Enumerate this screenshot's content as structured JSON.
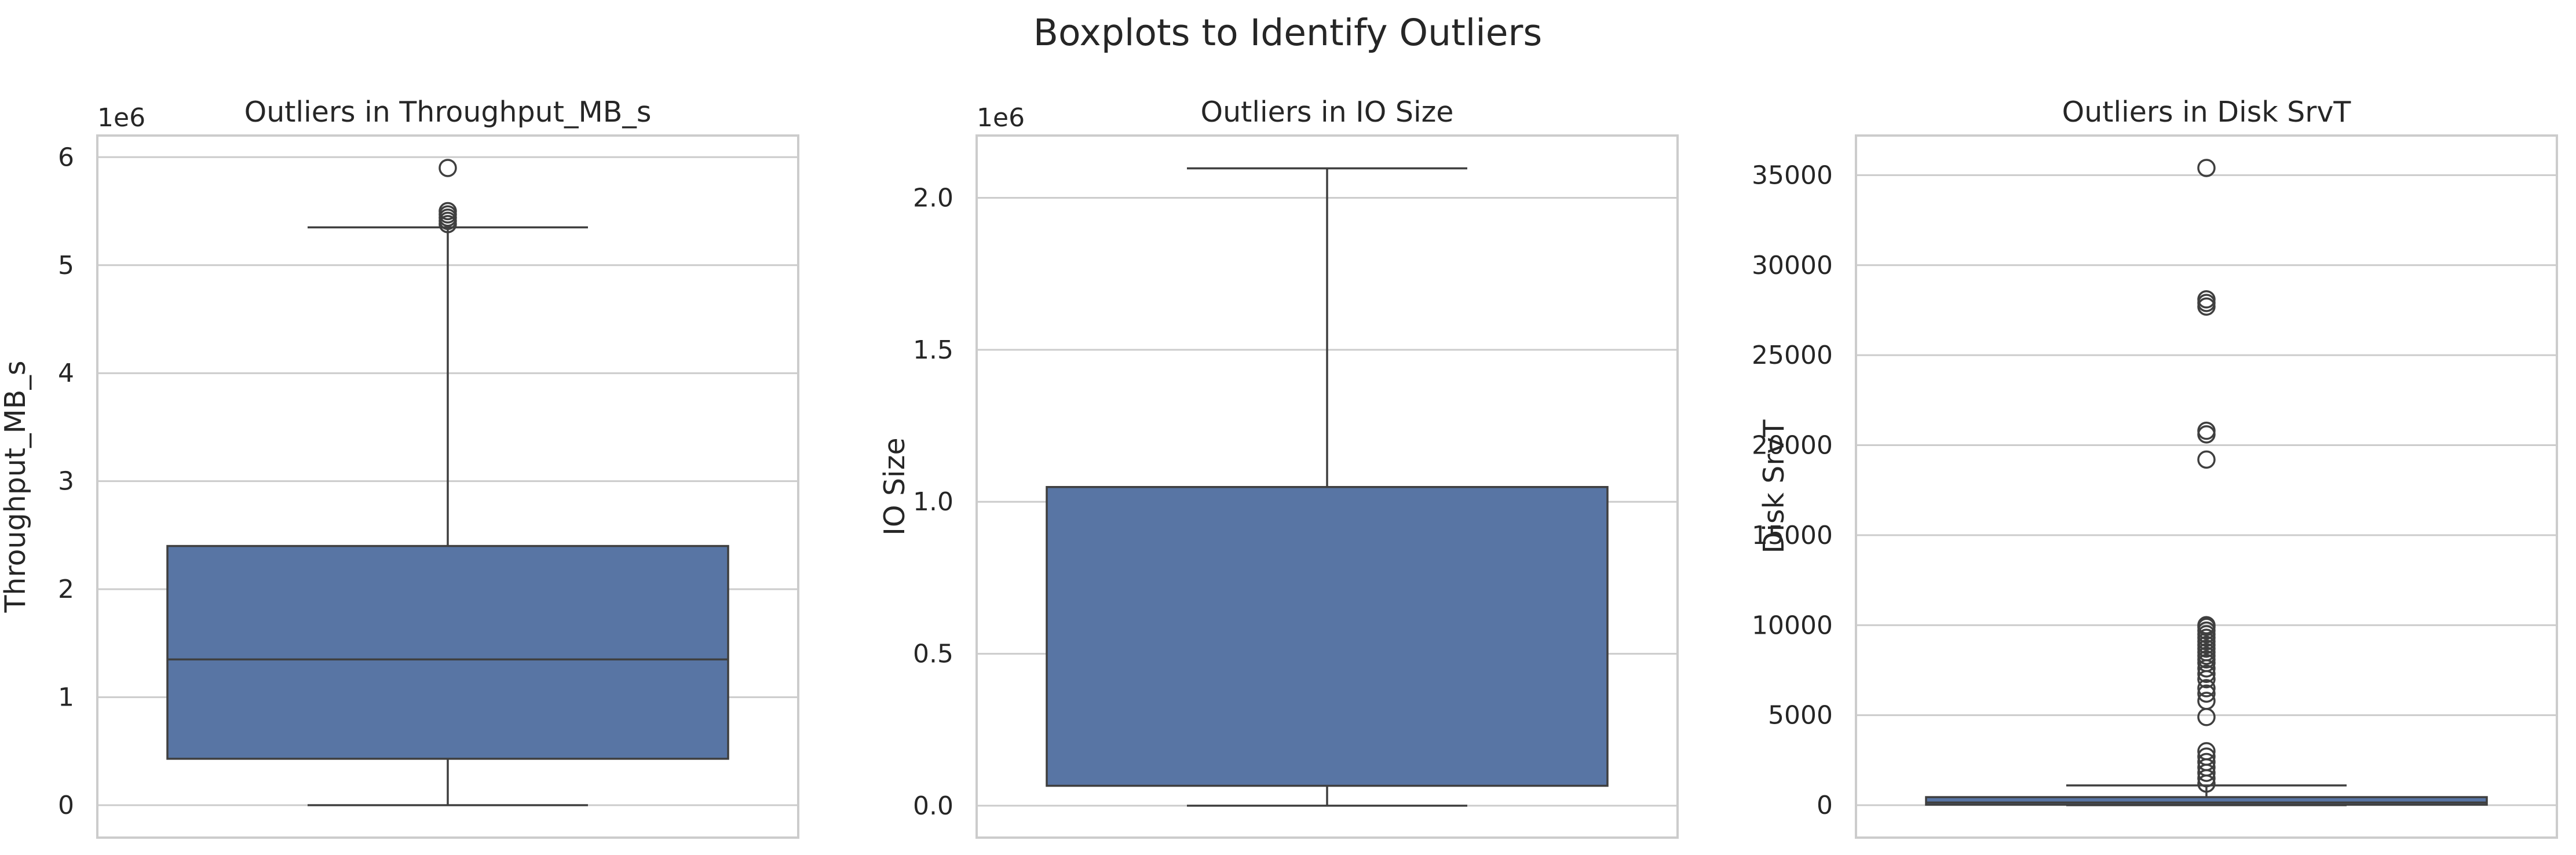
{
  "figure_title": "Boxplots to Identify Outliers",
  "colors": {
    "box_fill": "#5875a4",
    "line": "#3f3f3f",
    "grid": "#cccccc",
    "spine": "#cccccc",
    "text": "#262626"
  },
  "chart_data": [
    {
      "type": "box",
      "title": "Outliers in Throughput_MB_s",
      "xlabel": "",
      "ylabel": "Throughput_MB_s",
      "offset_label": "1e6",
      "grid": true,
      "ylim": [
        -300000,
        6200000
      ],
      "yticks": [
        0,
        1000000,
        2000000,
        3000000,
        4000000,
        5000000,
        6000000
      ],
      "ytick_labels": [
        "0",
        "1",
        "2",
        "3",
        "4",
        "5",
        "6"
      ],
      "stats": {
        "min": 0,
        "q1": 430000,
        "median": 1350000,
        "q3": 2400000,
        "max": 5350000
      },
      "outliers": [
        5380000,
        5410000,
        5440000,
        5470000,
        5500000,
        5900000
      ]
    },
    {
      "type": "box",
      "title": "Outliers in IO Size",
      "xlabel": "",
      "ylabel": "IO Size",
      "offset_label": "1e6",
      "grid": true,
      "ylim": [
        -105000,
        2205000
      ],
      "yticks": [
        0,
        500000,
        1000000,
        1500000,
        2000000
      ],
      "ytick_labels": [
        "0.0",
        "0.5",
        "1.0",
        "1.5",
        "2.0"
      ],
      "stats": {
        "min": 0,
        "q1": 65536,
        "median": 1048576,
        "q3": 1048576,
        "max": 2097152
      },
      "outliers": []
    },
    {
      "type": "box",
      "title": "Outliers in Disk SrvT",
      "xlabel": "",
      "ylabel": "Disk SrvT",
      "offset_label": "",
      "grid": true,
      "ylim": [
        -1800,
        37200
      ],
      "yticks": [
        0,
        5000,
        10000,
        15000,
        20000,
        25000,
        30000,
        35000
      ],
      "ytick_labels": [
        "0",
        "5000",
        "10000",
        "15000",
        "20000",
        "25000",
        "30000",
        "35000"
      ],
      "stats": {
        "min": 0,
        "q1": 30,
        "median": 150,
        "q3": 450,
        "max": 1100
      },
      "outliers": [
        1200,
        1500,
        1800,
        2100,
        2400,
        2700,
        3000,
        4900,
        5800,
        6200,
        6500,
        7000,
        7300,
        7600,
        7900,
        8100,
        8300,
        8500,
        8700,
        8900,
        9100,
        9300,
        9500,
        9700,
        9900,
        10000,
        19200,
        20600,
        20800,
        27700,
        27900,
        28100,
        35400
      ]
    }
  ]
}
